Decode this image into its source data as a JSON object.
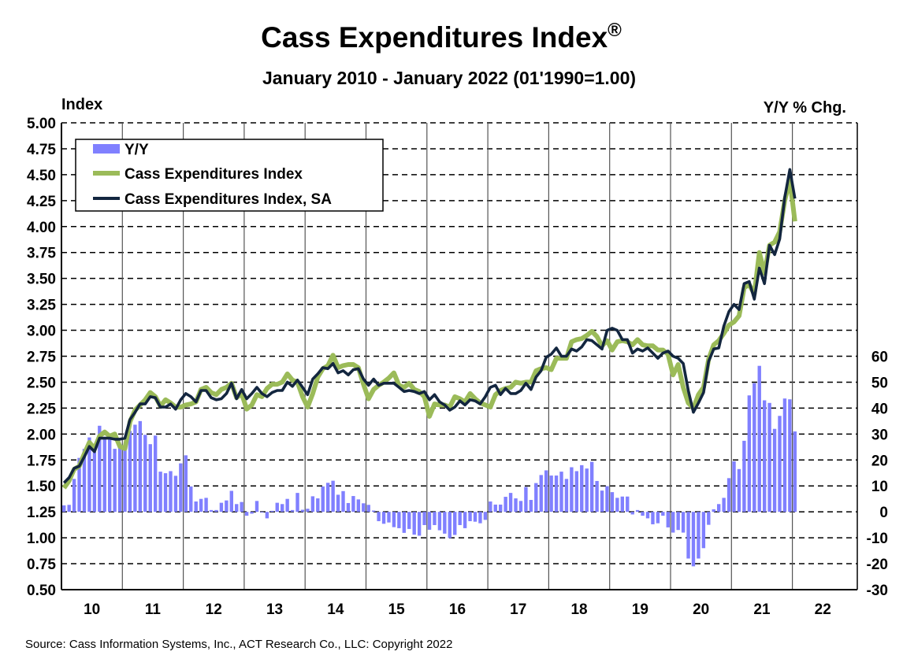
{
  "chart_data": {
    "type": "bar+line",
    "title": "Cass Expenditures Index",
    "title_mark": "®",
    "subtitle": "January 2010 - January 2022 (01'1990=1.00)",
    "ylabel_left": "Index",
    "ylabel_right": "Y/Y % Chg.",
    "source": "Source: Cass Information Systems, Inc., ACT Research Co., LLC: Copyright 2022",
    "ylim_left": [
      0.5,
      5.0
    ],
    "ylim_right": [
      -30,
      150
    ],
    "left_ticks": [
      "5.00",
      "4.75",
      "4.50",
      "4.25",
      "4.00",
      "3.75",
      "3.50",
      "3.25",
      "3.00",
      "2.75",
      "2.50",
      "2.25",
      "2.00",
      "1.75",
      "1.50",
      "1.25",
      "1.00",
      "0.75",
      "0.50"
    ],
    "right_ticks": [
      "60",
      "50",
      "40",
      "30",
      "20",
      "10",
      "0",
      "-10",
      "-20",
      "-30"
    ],
    "x_ticks": [
      "10",
      "11",
      "12",
      "13",
      "14",
      "15",
      "16",
      "17",
      "18",
      "19",
      "20",
      "21",
      "22"
    ],
    "x_start": "2010-01",
    "x_end": "2022-01",
    "frequency": "monthly",
    "grid": true,
    "legend_placement": "top-left",
    "colors": {
      "yoy": "#8080ff",
      "nsa": "#9bbb59",
      "sa": "#13263f"
    },
    "series": [
      {
        "name": "Y/Y",
        "type": "bar",
        "axis": "right",
        "values": [
          2.5,
          2.7,
          12.7,
          20.8,
          24.3,
          28.7,
          23.1,
          33.2,
          28.4,
          28.4,
          24.3,
          25.3,
          25.5,
          31.2,
          33.6,
          35,
          29.7,
          26.1,
          29.4,
          15.5,
          14.9,
          15.7,
          13.9,
          18.7,
          21.8,
          9.8,
          4,
          5,
          5.4,
          0.7,
          0.7,
          3.5,
          4.4,
          8.1,
          3,
          3.8,
          -1.5,
          -0.7,
          4.2,
          -0.2,
          -2.5,
          0.4,
          3.5,
          3,
          5,
          0.7,
          7.3,
          0.8,
          1.2,
          6,
          5.2,
          9.8,
          11.2,
          12,
          6.6,
          8,
          3.4,
          6.1,
          4.8,
          3.3,
          2.7,
          0.5,
          -3.6,
          -4.6,
          -4.1,
          -5.9,
          -6.3,
          -8.1,
          -6.6,
          -8.8,
          -9.2,
          -5.1,
          -6.9,
          -5.1,
          -7.1,
          -8.4,
          -10.1,
          -8.9,
          -5.1,
          -6.3,
          -3.6,
          -3.8,
          -4.4,
          -3.1,
          4,
          2.8,
          2.8,
          5.8,
          7.3,
          5.2,
          4.2,
          9.6,
          4.6,
          11.1,
          14.2,
          16,
          14,
          14,
          15.5,
          12.7,
          17.2,
          15.7,
          18,
          16.7,
          19.3,
          11.9,
          8.2,
          9.9,
          7.6,
          5.4,
          5.9,
          5.9,
          -1,
          0.7,
          -1.5,
          -2.5,
          -4.8,
          -4.4,
          -1.5,
          -6,
          -8,
          -7,
          -8,
          -18,
          -21,
          -18,
          -14,
          -5,
          1,
          3,
          5.4,
          13,
          19.5,
          16.5,
          27.4,
          44.9,
          49.6,
          56.3,
          43,
          42,
          32,
          37,
          43.7,
          43.4,
          31
        ]
      },
      {
        "name": "Cass Expenditures Index",
        "type": "line",
        "axis": "left",
        "values": [
          1.48,
          1.55,
          1.66,
          1.69,
          1.81,
          1.92,
          1.86,
          1.98,
          2.02,
          1.98,
          2.0,
          1.88,
          1.86,
          2.12,
          2.23,
          2.28,
          2.33,
          2.4,
          2.36,
          2.27,
          2.33,
          2.3,
          2.26,
          2.26,
          2.28,
          2.29,
          2.31,
          2.43,
          2.45,
          2.4,
          2.38,
          2.43,
          2.45,
          2.49,
          2.35,
          2.39,
          2.24,
          2.28,
          2.38,
          2.36,
          2.44,
          2.48,
          2.48,
          2.5,
          2.58,
          2.52,
          2.5,
          2.36,
          2.26,
          2.39,
          2.55,
          2.63,
          2.66,
          2.76,
          2.64,
          2.66,
          2.67,
          2.67,
          2.64,
          2.48,
          2.34,
          2.43,
          2.47,
          2.5,
          2.54,
          2.59,
          2.47,
          2.45,
          2.49,
          2.43,
          2.41,
          2.36,
          2.17,
          2.29,
          2.28,
          2.28,
          2.26,
          2.36,
          2.34,
          2.31,
          2.39,
          2.34,
          2.3,
          2.28,
          2.26,
          2.38,
          2.42,
          2.44,
          2.45,
          2.5,
          2.49,
          2.5,
          2.5,
          2.61,
          2.63,
          2.64,
          2.62,
          2.73,
          2.73,
          2.73,
          2.89,
          2.91,
          2.92,
          2.95,
          2.99,
          2.94,
          2.85,
          2.9,
          2.81,
          2.89,
          2.9,
          2.89,
          2.86,
          2.91,
          2.86,
          2.85,
          2.85,
          2.81,
          2.81,
          2.77,
          2.57,
          2.67,
          2.45,
          2.3,
          2.25,
          2.38,
          2.45,
          2.72,
          2.86,
          2.9,
          2.97,
          3.05,
          3.08,
          3.14,
          3.41,
          3.44,
          3.35,
          3.75,
          3.55,
          3.82,
          3.85,
          3.95,
          4.25,
          4.45,
          4.05
        ]
      },
      {
        "name": "Cass Expenditures Index, SA",
        "type": "line",
        "axis": "left",
        "values": [
          1.53,
          1.58,
          1.67,
          1.69,
          1.78,
          1.88,
          1.83,
          1.96,
          1.96,
          1.96,
          1.95,
          1.95,
          1.96,
          2.14,
          2.21,
          2.29,
          2.29,
          2.36,
          2.35,
          2.26,
          2.26,
          2.29,
          2.24,
          2.33,
          2.39,
          2.36,
          2.31,
          2.42,
          2.42,
          2.35,
          2.33,
          2.34,
          2.39,
          2.49,
          2.34,
          2.43,
          2.34,
          2.39,
          2.45,
          2.39,
          2.36,
          2.4,
          2.42,
          2.42,
          2.5,
          2.46,
          2.52,
          2.45,
          2.38,
          2.53,
          2.58,
          2.64,
          2.63,
          2.68,
          2.59,
          2.61,
          2.57,
          2.62,
          2.63,
          2.53,
          2.47,
          2.53,
          2.47,
          2.49,
          2.49,
          2.49,
          2.45,
          2.41,
          2.42,
          2.41,
          2.39,
          2.41,
          2.33,
          2.38,
          2.31,
          2.28,
          2.23,
          2.26,
          2.32,
          2.28,
          2.33,
          2.32,
          2.29,
          2.36,
          2.45,
          2.47,
          2.38,
          2.44,
          2.39,
          2.39,
          2.42,
          2.49,
          2.43,
          2.55,
          2.61,
          2.74,
          2.77,
          2.83,
          2.75,
          2.75,
          2.82,
          2.8,
          2.84,
          2.91,
          2.9,
          2.86,
          2.82,
          3.0,
          3.02,
          3.0,
          2.91,
          2.91,
          2.78,
          2.82,
          2.8,
          2.83,
          2.78,
          2.73,
          2.78,
          2.8,
          2.75,
          2.73,
          2.68,
          2.42,
          2.21,
          2.3,
          2.4,
          2.7,
          2.82,
          2.83,
          3.04,
          3.18,
          3.25,
          3.2,
          3.45,
          3.47,
          3.3,
          3.6,
          3.45,
          3.82,
          3.73,
          3.88,
          4.28,
          4.55,
          4.27
        ]
      }
    ]
  }
}
